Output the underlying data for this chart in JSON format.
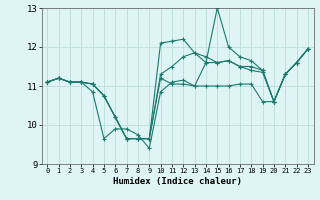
{
  "xlabel": "Humidex (Indice chaleur)",
  "bg_color": "#dff4f4",
  "grid_color": "#c0e0e0",
  "line_color": "#1a7a6e",
  "xlim": [
    -0.5,
    23.5
  ],
  "ylim": [
    9,
    13
  ],
  "yticks": [
    9,
    10,
    11,
    12,
    13
  ],
  "xticks": [
    0,
    1,
    2,
    3,
    4,
    5,
    6,
    7,
    8,
    9,
    10,
    11,
    12,
    13,
    14,
    15,
    16,
    17,
    18,
    19,
    20,
    21,
    22,
    23
  ],
  "lines": [
    {
      "x": [
        0,
        1,
        2,
        3,
        4,
        5,
        6,
        7,
        8,
        9,
        10,
        11,
        12,
        13,
        14,
        15,
        16,
        17,
        18,
        19,
        20,
        21,
        22,
        23
      ],
      "y": [
        11.1,
        11.2,
        11.1,
        11.1,
        10.85,
        9.65,
        9.9,
        9.9,
        9.75,
        9.4,
        10.85,
        11.1,
        11.15,
        11.0,
        11.6,
        11.6,
        11.65,
        11.5,
        11.4,
        11.35,
        10.6,
        11.3,
        11.6,
        11.95
      ]
    },
    {
      "x": [
        0,
        1,
        2,
        3,
        4,
        5,
        6,
        7,
        8,
        9,
        10,
        11,
        12,
        13,
        14,
        15,
        16,
        17,
        18,
        19,
        20,
        21,
        22,
        23
      ],
      "y": [
        11.1,
        11.2,
        11.1,
        11.1,
        11.05,
        10.75,
        10.2,
        9.65,
        9.65,
        9.65,
        12.1,
        12.15,
        12.2,
        11.85,
        11.6,
        13.0,
        12.0,
        11.75,
        11.65,
        11.4,
        10.6,
        11.3,
        11.6,
        11.95
      ]
    },
    {
      "x": [
        0,
        1,
        2,
        3,
        4,
        5,
        6,
        7,
        8,
        9,
        10,
        11,
        12,
        13,
        14,
        15,
        16,
        17,
        18,
        19,
        20,
        21,
        22,
        23
      ],
      "y": [
        11.1,
        11.2,
        11.1,
        11.1,
        11.05,
        10.75,
        10.2,
        9.65,
        9.65,
        9.65,
        11.3,
        11.5,
        11.75,
        11.85,
        11.75,
        11.6,
        11.65,
        11.5,
        11.5,
        11.4,
        10.6,
        11.3,
        11.6,
        11.95
      ]
    },
    {
      "x": [
        0,
        1,
        2,
        3,
        4,
        5,
        6,
        7,
        8,
        9,
        10,
        11,
        12,
        13,
        14,
        15,
        16,
        17,
        18,
        19,
        20,
        21,
        22,
        23
      ],
      "y": [
        11.1,
        11.2,
        11.1,
        11.1,
        11.05,
        10.75,
        10.2,
        9.65,
        9.65,
        9.65,
        11.2,
        11.05,
        11.05,
        11.0,
        11.0,
        11.0,
        11.0,
        11.05,
        11.05,
        10.6,
        10.6,
        11.3,
        11.6,
        11.95
      ]
    }
  ]
}
